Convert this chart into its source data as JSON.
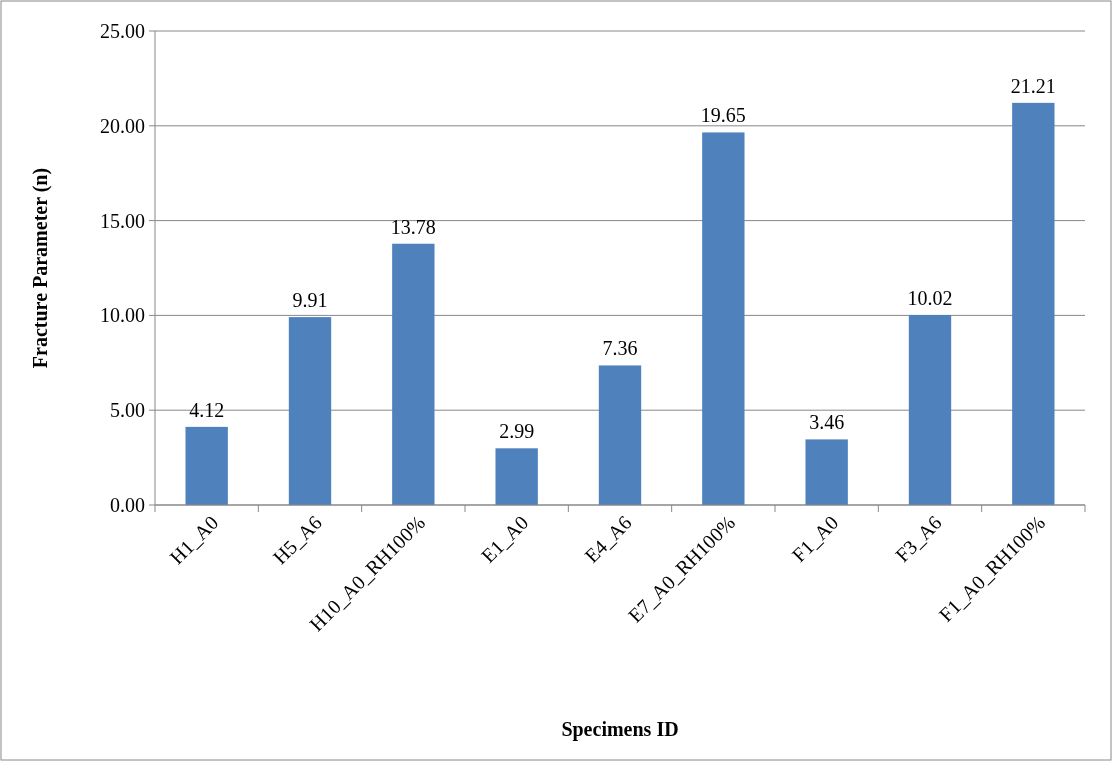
{
  "chart_data": {
    "type": "bar",
    "xlabel": "Specimens ID",
    "ylabel": "Fracture Parameter (n)",
    "categories": [
      "H1_A0",
      "H5_A6",
      "H10_A0_RH100%",
      "E1_A0",
      "E4_A6",
      "E7_A0_RH100%",
      "F1_A0",
      "F3_A6",
      "F1_A0_RH100%"
    ],
    "values": [
      4.12,
      9.91,
      13.78,
      2.99,
      7.36,
      19.65,
      3.46,
      10.02,
      21.21
    ],
    "color": "#4f81bd",
    "data_labels": true,
    "grid": "y",
    "ylim": [
      0,
      25
    ],
    "yticks": [
      {
        "value": 0,
        "label": "0.00"
      },
      {
        "value": 5,
        "label": "5.00"
      },
      {
        "value": 10,
        "label": "10.00"
      },
      {
        "value": 15,
        "label": "15.00"
      },
      {
        "value": 20,
        "label": "20.00"
      },
      {
        "value": 25,
        "label": "25.00"
      }
    ]
  }
}
